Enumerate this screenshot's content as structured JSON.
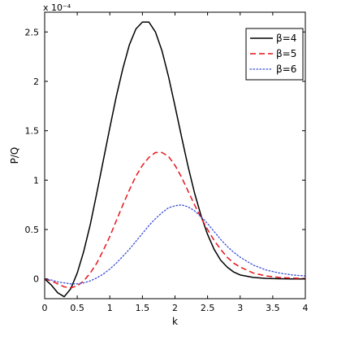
{
  "chart_data": {
    "type": "line",
    "title": "",
    "xlabel": "k",
    "ylabel": "P/Q",
    "y_scale_note": "x 10⁻⁴",
    "xlim": [
      0,
      4
    ],
    "ylim": [
      -0.2,
      2.7
    ],
    "x_ticks": [
      0,
      0.5,
      1,
      1.5,
      2,
      2.5,
      3,
      3.5,
      4
    ],
    "x_tick_labels": [
      "0",
      "0.5",
      "1",
      "1.5",
      "2",
      "2.5",
      "3",
      "3.5",
      "4"
    ],
    "y_ticks": [
      0,
      0.5,
      1,
      1.5,
      2,
      2.5
    ],
    "y_tick_labels": [
      "0",
      "0.5",
      "1",
      "1.5",
      "2",
      "2.5"
    ],
    "grid": false,
    "legend_position": "top-right",
    "series": [
      {
        "name": "β=4",
        "color": "#000000",
        "style": "solid",
        "x": [
          0,
          0.1,
          0.2,
          0.3,
          0.4,
          0.5,
          0.6,
          0.7,
          0.8,
          0.9,
          1.0,
          1.1,
          1.2,
          1.3,
          1.4,
          1.5,
          1.6,
          1.7,
          1.8,
          1.9,
          2.0,
          2.1,
          2.2,
          2.3,
          2.4,
          2.5,
          2.6,
          2.7,
          2.8,
          2.9,
          3.0,
          3.2,
          3.4,
          3.6,
          3.8,
          4.0
        ],
        "y": [
          0,
          -0.06,
          -0.14,
          -0.18,
          -0.1,
          0.06,
          0.28,
          0.55,
          0.87,
          1.2,
          1.53,
          1.85,
          2.13,
          2.37,
          2.53,
          2.6,
          2.6,
          2.5,
          2.31,
          2.05,
          1.75,
          1.44,
          1.14,
          0.87,
          0.64,
          0.45,
          0.3,
          0.19,
          0.12,
          0.07,
          0.04,
          0.015,
          0.005,
          0.002,
          0.0,
          0.0
        ]
      },
      {
        "name": "β=5",
        "color": "#e8141a",
        "style": "dashed",
        "x": [
          0,
          0.1,
          0.2,
          0.3,
          0.4,
          0.5,
          0.6,
          0.7,
          0.8,
          0.9,
          1.0,
          1.1,
          1.2,
          1.3,
          1.4,
          1.5,
          1.6,
          1.7,
          1.8,
          1.9,
          2.0,
          2.1,
          2.2,
          2.3,
          2.4,
          2.5,
          2.6,
          2.7,
          2.8,
          2.9,
          3.0,
          3.2,
          3.4,
          3.6,
          3.8,
          4.0
        ],
        "y": [
          0,
          -0.02,
          -0.05,
          -0.08,
          -0.09,
          -0.07,
          -0.02,
          0.06,
          0.16,
          0.29,
          0.43,
          0.59,
          0.75,
          0.9,
          1.04,
          1.15,
          1.23,
          1.28,
          1.28,
          1.24,
          1.15,
          1.03,
          0.89,
          0.75,
          0.62,
          0.5,
          0.39,
          0.3,
          0.22,
          0.16,
          0.12,
          0.06,
          0.03,
          0.015,
          0.008,
          0.004
        ]
      },
      {
        "name": "β=6",
        "color": "#3a4fd6",
        "style": "dotted",
        "x": [
          0,
          0.1,
          0.2,
          0.3,
          0.4,
          0.5,
          0.6,
          0.7,
          0.8,
          0.9,
          1.0,
          1.1,
          1.2,
          1.3,
          1.4,
          1.5,
          1.6,
          1.7,
          1.8,
          1.9,
          2.0,
          2.1,
          2.2,
          2.3,
          2.4,
          2.5,
          2.6,
          2.7,
          2.8,
          2.9,
          3.0,
          3.2,
          3.4,
          3.6,
          3.8,
          4.0
        ],
        "y": [
          0,
          -0.01,
          -0.03,
          -0.04,
          -0.05,
          -0.05,
          -0.04,
          -0.02,
          0.01,
          0.05,
          0.1,
          0.16,
          0.23,
          0.3,
          0.38,
          0.46,
          0.54,
          0.61,
          0.67,
          0.72,
          0.74,
          0.75,
          0.73,
          0.69,
          0.63,
          0.56,
          0.48,
          0.4,
          0.33,
          0.27,
          0.22,
          0.14,
          0.09,
          0.06,
          0.04,
          0.03
        ]
      }
    ]
  }
}
